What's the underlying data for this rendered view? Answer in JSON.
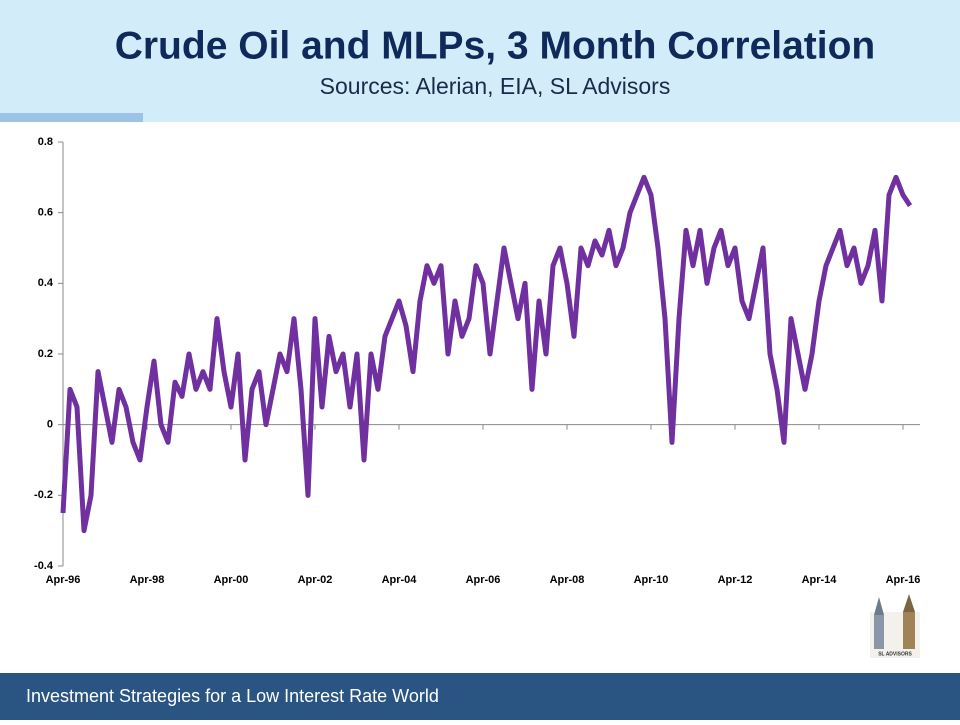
{
  "chart_data": {
    "type": "line",
    "title": "Crude Oil and MLPs, 3 Month Correlation",
    "subtitle": "Sources: Alerian, EIA, SL Advisors",
    "x": [
      "Apr-96",
      "Jun-96",
      "Aug-96",
      "Oct-96",
      "Dec-96",
      "Feb-97",
      "Apr-97",
      "Jun-97",
      "Aug-97",
      "Oct-97",
      "Dec-97",
      "Feb-98",
      "Apr-98",
      "Jun-98",
      "Aug-98",
      "Oct-98",
      "Dec-98",
      "Feb-99",
      "Apr-99",
      "Jun-99",
      "Aug-99",
      "Oct-99",
      "Dec-99",
      "Feb-00",
      "Apr-00",
      "Jun-00",
      "Aug-00",
      "Oct-00",
      "Dec-00",
      "Feb-01",
      "Apr-01",
      "Jun-01",
      "Aug-01",
      "Oct-01",
      "Dec-01",
      "Feb-02",
      "Apr-02",
      "Jun-02",
      "Aug-02",
      "Oct-02",
      "Dec-02",
      "Feb-03",
      "Apr-03",
      "Jun-03",
      "Aug-03",
      "Oct-03",
      "Dec-03",
      "Feb-04",
      "Apr-04",
      "Jun-04",
      "Aug-04",
      "Oct-04",
      "Dec-04",
      "Feb-05",
      "Apr-05",
      "Jun-05",
      "Aug-05",
      "Oct-05",
      "Dec-05",
      "Feb-06",
      "Apr-06",
      "Jun-06",
      "Aug-06",
      "Oct-06",
      "Dec-06",
      "Feb-07",
      "Apr-07",
      "Jun-07",
      "Aug-07",
      "Oct-07",
      "Dec-07",
      "Feb-08",
      "Apr-08",
      "Jun-08",
      "Aug-08",
      "Oct-08",
      "Dec-08",
      "Feb-09",
      "Apr-09",
      "Jun-09",
      "Aug-09",
      "Oct-09",
      "Dec-09",
      "Feb-10",
      "Apr-10",
      "Jun-10",
      "Aug-10",
      "Oct-10",
      "Dec-10",
      "Feb-11",
      "Apr-11",
      "Jun-11",
      "Aug-11",
      "Oct-11",
      "Dec-11",
      "Feb-12",
      "Apr-12",
      "Jun-12",
      "Aug-12",
      "Oct-12",
      "Dec-12",
      "Feb-13",
      "Apr-13",
      "Jun-13",
      "Aug-13",
      "Oct-13",
      "Dec-13",
      "Feb-14",
      "Apr-14",
      "Jun-14",
      "Aug-14",
      "Oct-14",
      "Dec-14",
      "Feb-15",
      "Apr-15",
      "Jun-15",
      "Aug-15",
      "Oct-15",
      "Dec-15",
      "Feb-16",
      "Apr-16",
      "Jun-16"
    ],
    "series": [
      {
        "color": "#7030a0",
        "values": [
          -0.25,
          0.1,
          0.05,
          -0.3,
          -0.2,
          0.15,
          0.05,
          -0.05,
          0.1,
          0.05,
          -0.05,
          -0.1,
          0.05,
          0.18,
          0.0,
          -0.05,
          0.12,
          0.08,
          0.2,
          0.1,
          0.15,
          0.1,
          0.3,
          0.15,
          0.05,
          0.2,
          -0.1,
          0.1,
          0.15,
          0.0,
          0.1,
          0.2,
          0.15,
          0.3,
          0.1,
          -0.2,
          0.3,
          0.05,
          0.25,
          0.15,
          0.2,
          0.05,
          0.2,
          -0.1,
          0.2,
          0.1,
          0.25,
          0.3,
          0.35,
          0.28,
          0.15,
          0.35,
          0.45,
          0.4,
          0.45,
          0.2,
          0.35,
          0.25,
          0.3,
          0.45,
          0.4,
          0.2,
          0.35,
          0.5,
          0.4,
          0.3,
          0.4,
          0.1,
          0.35,
          0.2,
          0.45,
          0.5,
          0.4,
          0.25,
          0.5,
          0.45,
          0.52,
          0.48,
          0.55,
          0.45,
          0.5,
          0.6,
          0.65,
          0.7,
          0.65,
          0.5,
          0.3,
          -0.05,
          0.3,
          0.55,
          0.45,
          0.55,
          0.4,
          0.5,
          0.55,
          0.45,
          0.5,
          0.35,
          0.3,
          0.4,
          0.5,
          0.2,
          0.1,
          -0.05,
          0.3,
          0.2,
          0.1,
          0.2,
          0.35,
          0.45,
          0.5,
          0.55,
          0.45,
          0.5,
          0.4,
          0.45,
          0.55,
          0.35,
          0.65,
          0.7,
          0.65,
          0.62
        ]
      }
    ],
    "xticks": [
      "Apr-96",
      "Apr-98",
      "Apr-00",
      "Apr-02",
      "Apr-04",
      "Apr-06",
      "Apr-08",
      "Apr-10",
      "Apr-12",
      "Apr-14",
      "Apr-16"
    ],
    "ylim": [
      -0.4,
      0.8
    ],
    "yticks": [
      -0.4,
      -0.2,
      0,
      0.2,
      0.4,
      0.6,
      0.8
    ],
    "grid": false
  },
  "logo_text": "SL ADVISORS",
  "footer": "Investment Strategies for a Low Interest Rate World"
}
